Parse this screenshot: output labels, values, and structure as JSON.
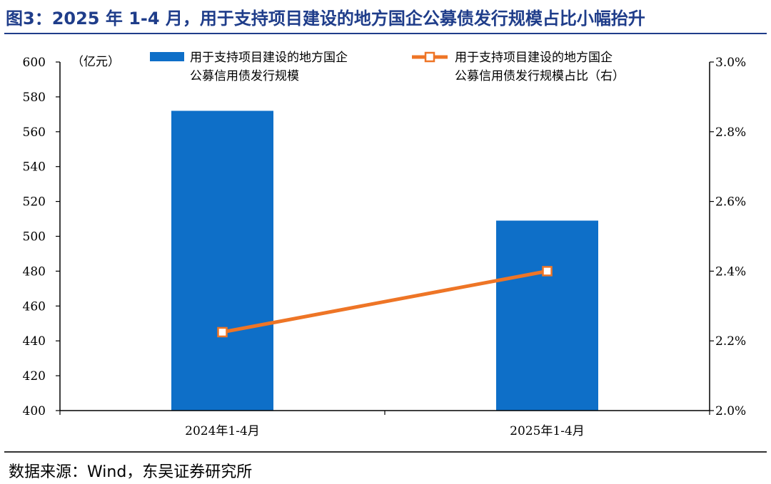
{
  "title": "图3：2025 年 1-4 月，用于支持项目建设的地方国企公募债发行规模占比小幅抬升",
  "source": "数据来源：Wind，东吴证券研究所",
  "chart_data": {
    "type": "bar",
    "categories": [
      "2024年1-4月",
      "2025年1-4月"
    ],
    "unit_label": "（亿元）",
    "series": [
      {
        "name": "用于支持项目建设的地方国企公募信用债发行规模",
        "legend_lines": [
          "用于支持项目建设的地方国企",
          "公募信用债发行规模"
        ],
        "type": "bar",
        "axis": "left",
        "color": "#0e6fc8",
        "values": [
          572,
          509
        ]
      },
      {
        "name": "用于支持项目建设的地方国企公募信用债发行规模占比（右）",
        "legend_lines": [
          "用于支持项目建设的地方国企",
          "公募信用债发行规模占比（右）"
        ],
        "type": "line",
        "axis": "right",
        "color": "#ee7526",
        "values": [
          2.225,
          2.4
        ]
      }
    ],
    "y_left": {
      "min": 400,
      "max": 600,
      "ticks": [
        "400",
        "420",
        "440",
        "460",
        "480",
        "500",
        "520",
        "540",
        "560",
        "580",
        "600"
      ]
    },
    "y_right": {
      "min": 2.0,
      "max": 3.0,
      "ticks": [
        "2.0%",
        "2.2%",
        "2.4%",
        "2.6%",
        "2.8%",
        "3.0%"
      ]
    },
    "grid": false,
    "legend_position": "top"
  }
}
